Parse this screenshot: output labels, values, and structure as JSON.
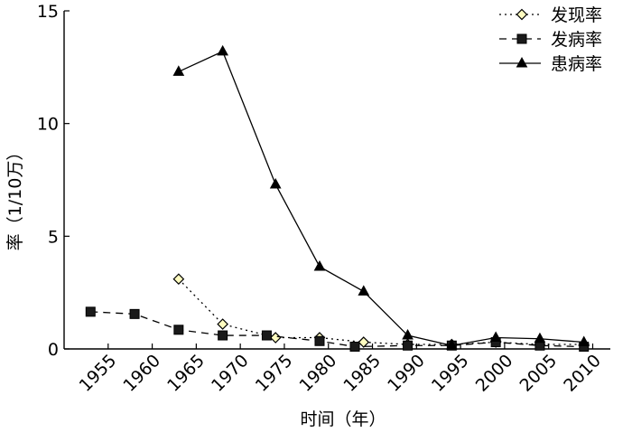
{
  "chart_data": {
    "type": "line",
    "xlabel": "时间（年）",
    "ylabel": "率（1/10万）",
    "xlim": [
      1950,
      2012
    ],
    "ylim": [
      0,
      15
    ],
    "xticks": [
      1955,
      1960,
      1965,
      1970,
      1975,
      1980,
      1985,
      1990,
      1995,
      2000,
      2005,
      2010
    ],
    "xtick_labels": [
      "1955",
      "1960",
      "1965",
      "1970",
      "1975",
      "1980",
      "1985",
      "1990",
      "1995",
      "2000",
      "2005",
      "2010"
    ],
    "yticks": [
      0,
      5,
      10,
      15
    ],
    "ytick_labels": [
      "0",
      "5",
      "10",
      "15"
    ],
    "legend_position": "top-right",
    "series": [
      {
        "name": "发现率",
        "line_style": "dotted",
        "marker": "diamond",
        "color": "#000000",
        "marker_fill": "#fffcc0",
        "x": [
          1963,
          1968,
          1974,
          1979,
          1984,
          1989,
          1994,
          1999,
          2004,
          2009
        ],
        "y": [
          3.1,
          1.1,
          0.5,
          0.5,
          0.3,
          0.2,
          0.2,
          0.3,
          0.2,
          0.2
        ]
      },
      {
        "name": "发病率",
        "line_style": "dashed",
        "marker": "square",
        "color": "#000000",
        "marker_fill": "#1a1a1a",
        "x": [
          1953,
          1958,
          1963,
          1968,
          1973,
          1979,
          1983,
          1989,
          1994,
          1999,
          2004,
          2009
        ],
        "y": [
          1.65,
          1.55,
          0.85,
          0.6,
          0.6,
          0.35,
          0.1,
          0.15,
          0.15,
          0.3,
          0.15,
          0.1
        ]
      },
      {
        "name": "患病率",
        "line_style": "solid",
        "marker": "triangle",
        "color": "#000000",
        "marker_fill": "#000000",
        "x": [
          1963,
          1968,
          1974,
          1979,
          1984,
          1989,
          1994,
          1999,
          2004,
          2009
        ],
        "y": [
          12.3,
          13.2,
          7.3,
          3.65,
          2.55,
          0.6,
          0.15,
          0.5,
          0.45,
          0.3
        ]
      }
    ]
  }
}
